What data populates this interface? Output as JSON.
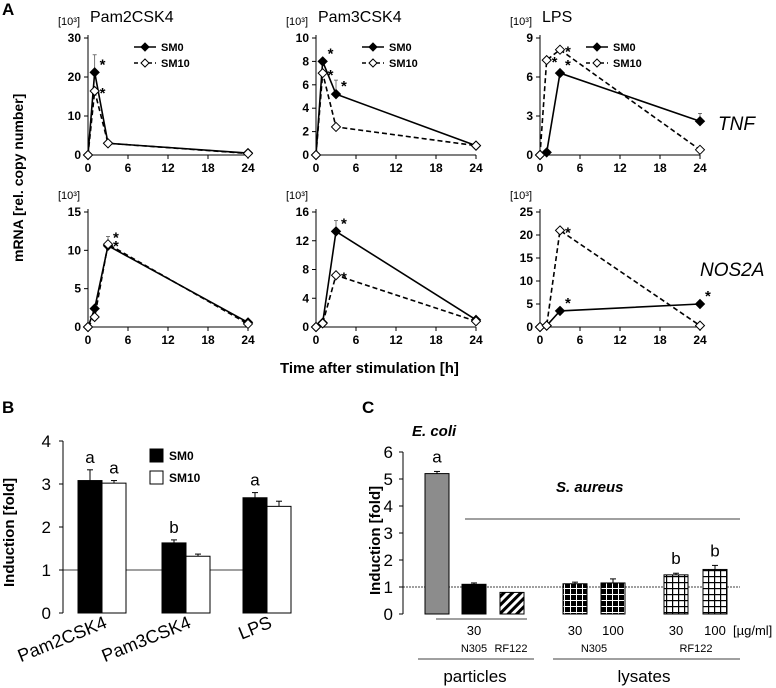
{
  "panel_labels": {
    "a": "A",
    "b": "B",
    "c": "C"
  },
  "units": {
    "per_1000": "[10³]"
  },
  "gene_labels": {
    "tnf": "TNF",
    "nos2a": "NOS2A"
  },
  "shared_ylabel": "mRNA [rel. copy number]",
  "shared_xlabel": "Time after stimulation [h]",
  "markers": {
    "star": "*"
  },
  "colors": {
    "black": "#000000",
    "gray": "#8c8c8c",
    "white": "#ffffff"
  },
  "chart_data": [
    {
      "id": "a-tnf-pam2",
      "type": "line",
      "title": "Pam2CSK4",
      "row": "TNF",
      "x": [
        0,
        1,
        3,
        24
      ],
      "xticks": [
        0,
        6,
        12,
        18,
        24
      ],
      "xlim": [
        0,
        24
      ],
      "yticks": [
        0,
        10,
        20,
        30
      ],
      "ylim": [
        0,
        30
      ],
      "series": [
        {
          "name": "SM0",
          "values": [
            0,
            21.2,
            3,
            0.5
          ],
          "errors": [
            0,
            4.5,
            0,
            0
          ],
          "stars": [
            false,
            true,
            false,
            false
          ]
        },
        {
          "name": "SM10",
          "values": [
            0,
            16.4,
            3,
            0.4
          ],
          "errors": [
            0,
            0,
            0,
            0
          ],
          "stars": [
            false,
            true,
            false,
            false
          ]
        }
      ]
    },
    {
      "id": "a-tnf-pam3",
      "type": "line",
      "title": "Pam3CSK4",
      "row": "TNF",
      "x": [
        0,
        1,
        3,
        24
      ],
      "xticks": [
        0,
        6,
        12,
        18,
        24
      ],
      "xlim": [
        0,
        24
      ],
      "yticks": [
        0,
        2,
        4,
        6,
        8,
        10
      ],
      "ylim": [
        0,
        10
      ],
      "series": [
        {
          "name": "SM0",
          "values": [
            0,
            8,
            5.2,
            0.8
          ],
          "errors": [
            0,
            0,
            1.2,
            0
          ],
          "stars": [
            false,
            true,
            true,
            false
          ]
        },
        {
          "name": "SM10",
          "values": [
            0,
            7,
            2.4,
            0.8
          ],
          "errors": [
            0,
            0,
            0,
            0
          ],
          "stars": [
            false,
            true,
            false,
            false
          ]
        }
      ]
    },
    {
      "id": "a-tnf-lps",
      "type": "line",
      "title": "LPS",
      "row": "TNF",
      "x": [
        0,
        1,
        3,
        24
      ],
      "xticks": [
        0,
        6,
        12,
        18,
        24
      ],
      "xlim": [
        0,
        24
      ],
      "yticks": [
        0,
        3,
        6,
        9
      ],
      "ylim": [
        0,
        9
      ],
      "series": [
        {
          "name": "SM0",
          "values": [
            0,
            0.2,
            6.3,
            2.6
          ],
          "errors": [
            0,
            0,
            0,
            0.6
          ],
          "stars": [
            false,
            false,
            true,
            false
          ]
        },
        {
          "name": "SM10",
          "values": [
            0,
            7.3,
            8.1,
            0.4
          ],
          "errors": [
            0,
            0,
            0,
            0
          ],
          "stars": [
            false,
            true,
            true,
            false
          ]
        }
      ]
    },
    {
      "id": "a-nos2a-pam2",
      "type": "line",
      "title": "",
      "row": "NOS2A",
      "x": [
        0,
        1,
        3,
        24
      ],
      "xticks": [
        0,
        6,
        12,
        18,
        24
      ],
      "xlim": [
        0,
        24
      ],
      "yticks": [
        0,
        5,
        10,
        15
      ],
      "ylim": [
        0,
        15
      ],
      "series": [
        {
          "name": "SM0",
          "values": [
            0,
            2.4,
            10.6,
            0.6
          ],
          "errors": [
            0,
            0,
            1.2,
            0
          ],
          "stars": [
            false,
            false,
            true,
            false
          ]
        },
        {
          "name": "SM10",
          "values": [
            0,
            1.3,
            10.8,
            0.4
          ],
          "errors": [
            0,
            0,
            0,
            0
          ],
          "stars": [
            false,
            false,
            true,
            false
          ]
        }
      ]
    },
    {
      "id": "a-nos2a-pam3",
      "type": "line",
      "title": "",
      "row": "NOS2A",
      "x": [
        0,
        1,
        3,
        24
      ],
      "xticks": [
        0,
        6,
        12,
        18,
        24
      ],
      "xlim": [
        0,
        24
      ],
      "yticks": [
        0,
        4,
        8,
        12,
        16
      ],
      "ylim": [
        0,
        16
      ],
      "series": [
        {
          "name": "SM0",
          "values": [
            0,
            0.6,
            13.3,
            1
          ],
          "errors": [
            0,
            0,
            1.5,
            0
          ],
          "stars": [
            false,
            false,
            true,
            false
          ]
        },
        {
          "name": "SM10",
          "values": [
            0,
            0.5,
            7.2,
            0.8
          ],
          "errors": [
            0,
            0,
            0,
            0
          ],
          "stars": [
            false,
            false,
            true,
            false
          ]
        }
      ]
    },
    {
      "id": "a-nos2a-lps",
      "type": "line",
      "title": "",
      "row": "NOS2A",
      "x": [
        0,
        1,
        3,
        24
      ],
      "xticks": [
        0,
        6,
        12,
        18,
        24
      ],
      "xlim": [
        0,
        24
      ],
      "yticks": [
        0,
        5,
        10,
        15,
        20,
        25
      ],
      "ylim": [
        0,
        25
      ],
      "series": [
        {
          "name": "SM0",
          "values": [
            0,
            0.3,
            3.5,
            5
          ],
          "errors": [
            0,
            0,
            0,
            0
          ],
          "stars": [
            false,
            false,
            true,
            true
          ]
        },
        {
          "name": "SM10",
          "values": [
            0,
            0.3,
            21,
            0.3
          ],
          "errors": [
            0,
            0,
            0,
            0
          ],
          "stars": [
            false,
            false,
            true,
            false
          ]
        }
      ]
    },
    {
      "id": "b",
      "type": "bar",
      "xlabel": "",
      "ylabel": "Induction [fold]",
      "categories": [
        "Pam2CSK4",
        "Pam3CSK4",
        "LPS"
      ],
      "yticks": [
        0,
        1,
        2,
        3,
        4
      ],
      "ylim": [
        0,
        4
      ],
      "reference_line": 1,
      "series": [
        {
          "name": "SM0",
          "values": [
            3.08,
            1.63,
            2.68
          ],
          "errors": [
            0.25,
            0.07,
            0.12
          ],
          "letters": [
            "a",
            "b",
            "a"
          ]
        },
        {
          "name": "SM10",
          "values": [
            3.02,
            1.32,
            2.48
          ],
          "errors": [
            0.06,
            0.05,
            0.12
          ],
          "letters": [
            "a",
            "",
            ""
          ]
        }
      ]
    },
    {
      "id": "c",
      "type": "bar",
      "ylabel": "Induction [fold]",
      "yticks": [
        0,
        1,
        2,
        3,
        4,
        5,
        6
      ],
      "ylim": [
        0,
        6
      ],
      "reference_line": 1,
      "title_ecoli": "E. coli",
      "title_saureus": "S. aureus",
      "bars": [
        {
          "label": "E. coli",
          "value": 5.2,
          "error": 0.08,
          "fill": "gray",
          "letter": "a"
        },
        {
          "label": "particles 30 N305",
          "value": 1.1,
          "error": 0.05,
          "fill": "black",
          "letter": ""
        },
        {
          "label": "particles RF122",
          "value": 0.8,
          "error": 0,
          "fill": "hatch",
          "letter": ""
        },
        {
          "label": "lysates N305 30",
          "value": 1.12,
          "error": 0.06,
          "fill": "grid-black",
          "letter": ""
        },
        {
          "label": "lysates N305 100",
          "value": 1.15,
          "error": 0.15,
          "fill": "grid-black",
          "letter": ""
        },
        {
          "label": "lysates RF122 30",
          "value": 1.45,
          "error": 0.06,
          "fill": "grid-white",
          "letter": "b"
        },
        {
          "label": "lysates RF122 100",
          "value": 1.65,
          "error": 0.15,
          "fill": "grid-white",
          "letter": "b"
        }
      ],
      "labels": {
        "t30a": "30",
        "n305a": "N305",
        "rf122a": "RF122",
        "t30b": "30",
        "t100a": "100",
        "n305b": "N305",
        "t30c": "30",
        "t100b": "100",
        "unit": "[µg/ml]",
        "rf122b": "RF122",
        "particles": "particles",
        "lysates": "lysates"
      }
    }
  ]
}
